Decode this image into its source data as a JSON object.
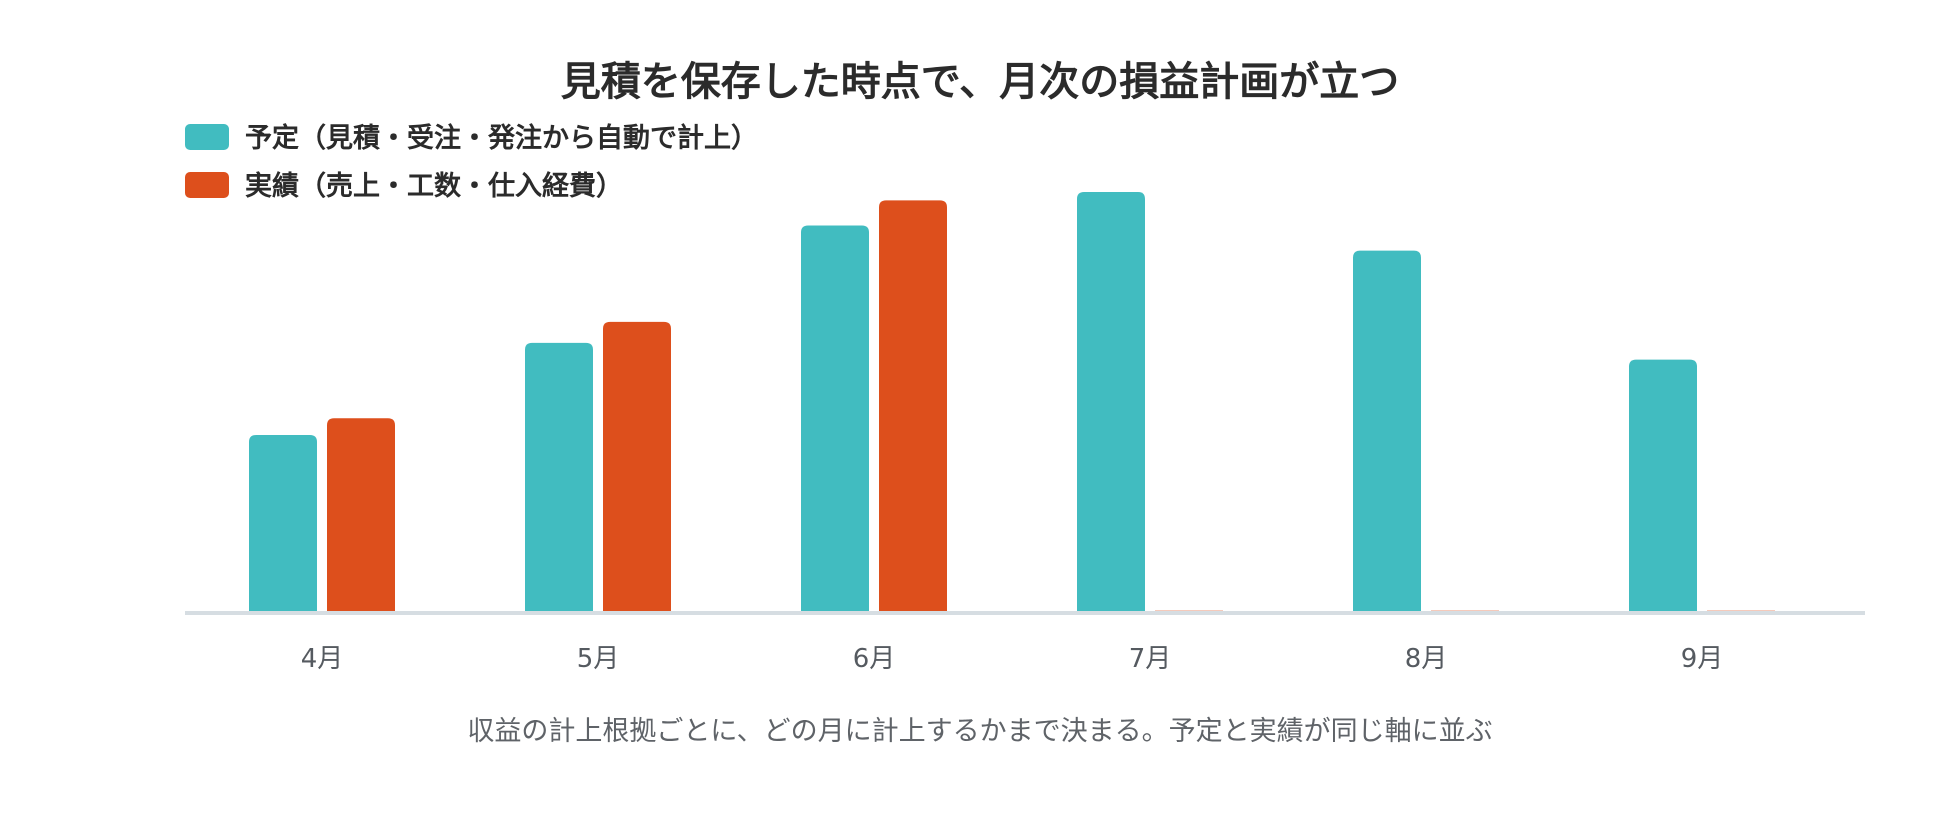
{
  "chart_data": {
    "type": "bar",
    "title": "見積を保存した時点で、月次の損益計画が立つ",
    "caption": "収益の計上根拠ごとに、どの月に計上するかまで決まる。予定と実績が同じ軸に並ぶ",
    "categories": [
      "4月",
      "5月",
      "6月",
      "7月",
      "8月",
      "9月"
    ],
    "series": [
      {
        "name": "予定（見積・受注・発注から自動で計上）",
        "color": "#41bcc0",
        "values": [
          42,
          64,
          92,
          100,
          86,
          60
        ]
      },
      {
        "name": "実績（売上・工数・仕入経費）",
        "color": "#dd4f1c",
        "values": [
          46,
          69,
          98,
          0,
          0,
          0
        ]
      }
    ],
    "ylim": [
      0,
      100
    ],
    "legend_position": "top-left",
    "grid": false,
    "axis_color": "#d6dde2"
  }
}
